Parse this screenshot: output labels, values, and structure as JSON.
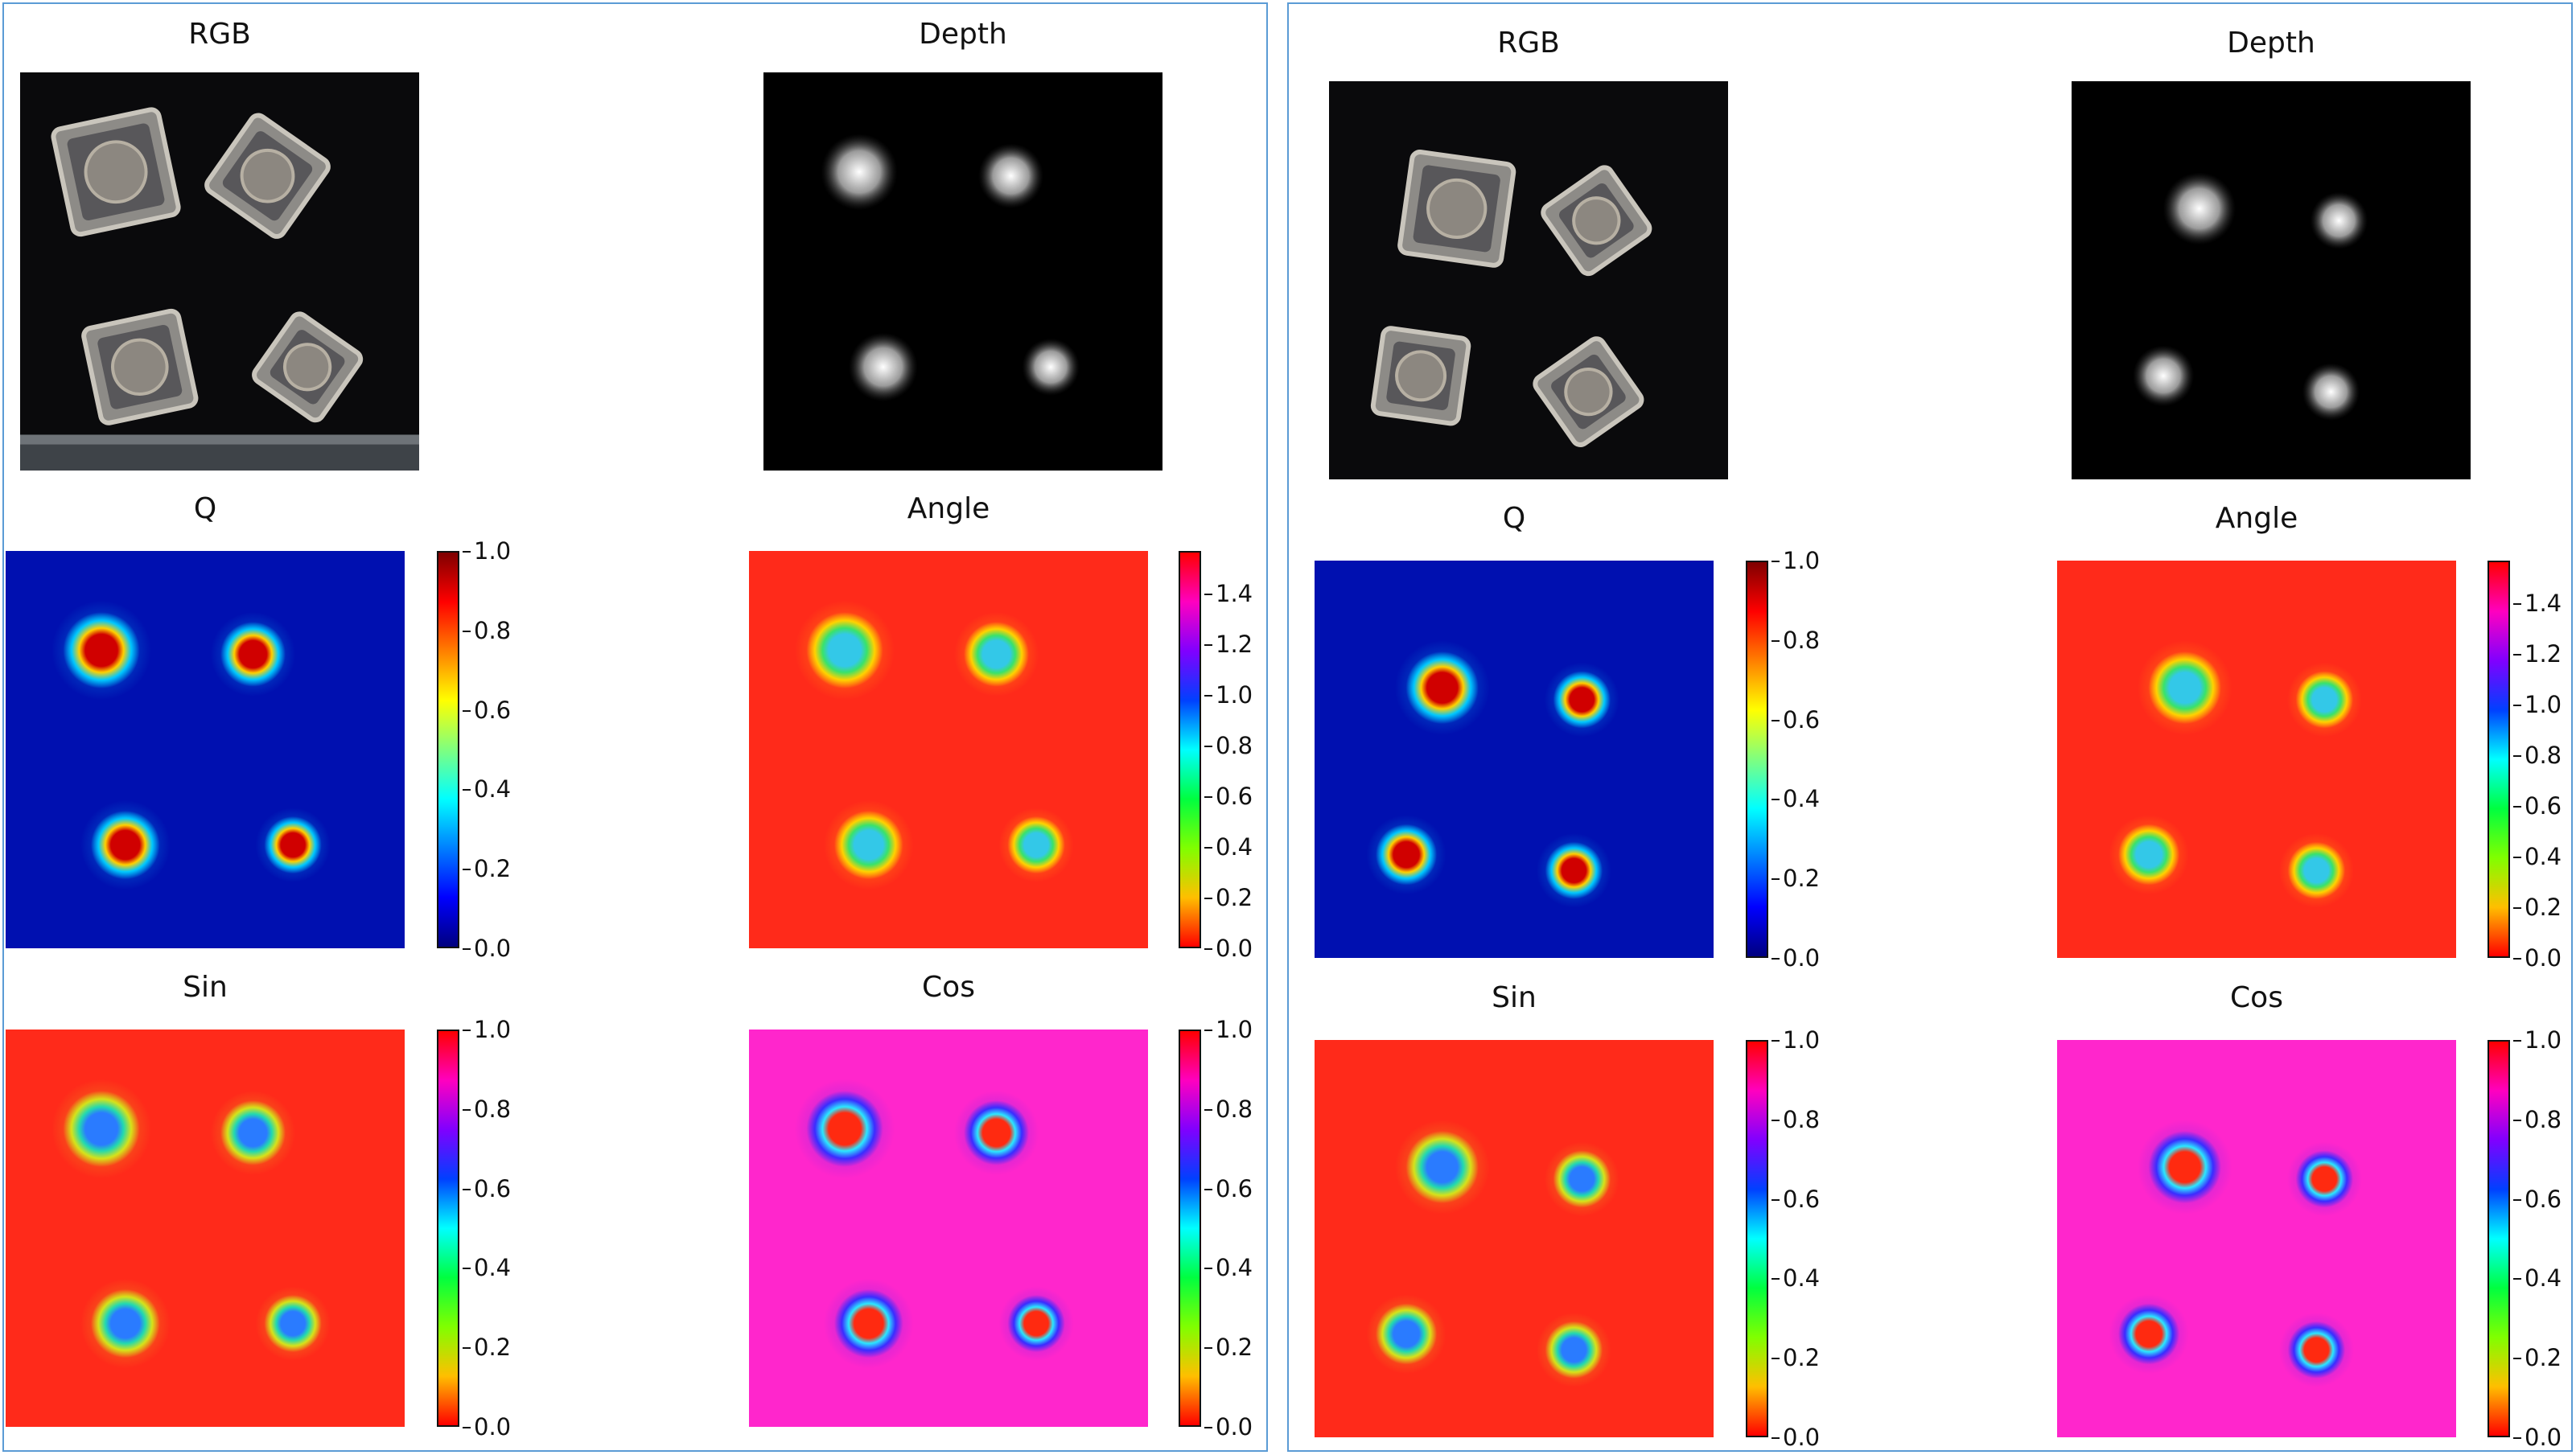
{
  "groups": [
    {
      "panels": {
        "rgb": {
          "title": "RGB"
        },
        "depth": {
          "title": "Depth"
        },
        "q": {
          "title": "Q",
          "ticks": [
            "1.0",
            "0.8",
            "0.6",
            "0.4",
            "0.2",
            "0.0"
          ]
        },
        "angle": {
          "title": "Angle",
          "ticks": [
            "1.4",
            "1.2",
            "1.0",
            "0.8",
            "0.6",
            "0.4",
            "0.2",
            "0.0"
          ]
        },
        "sin": {
          "title": "Sin",
          "ticks": [
            "1.0",
            "0.8",
            "0.6",
            "0.4",
            "0.2",
            "0.0"
          ]
        },
        "cos": {
          "title": "Cos",
          "ticks": [
            "1.0",
            "0.8",
            "0.6",
            "0.4",
            "0.2",
            "0.0"
          ]
        }
      }
    },
    {
      "panels": {
        "rgb": {
          "title": "RGB"
        },
        "depth": {
          "title": "Depth"
        },
        "q": {
          "title": "Q",
          "ticks": [
            "1.0",
            "0.8",
            "0.6",
            "0.4",
            "0.2",
            "0.0"
          ]
        },
        "angle": {
          "title": "Angle",
          "ticks": [
            "1.4",
            "1.2",
            "1.0",
            "0.8",
            "0.6",
            "0.4",
            "0.2",
            "0.0"
          ]
        },
        "sin": {
          "title": "Sin",
          "ticks": [
            "1.0",
            "0.8",
            "0.6",
            "0.4",
            "0.2",
            "0.0"
          ]
        },
        "cos": {
          "title": "Cos",
          "ticks": [
            "1.0",
            "0.8",
            "0.6",
            "0.4",
            "0.2",
            "0.0"
          ]
        }
      }
    }
  ],
  "colors": {
    "frame": "#5b9bd5",
    "jet_bg": "#00008b",
    "hsv_bg": "#ff2020",
    "cos_bg": "#ff20d0"
  }
}
